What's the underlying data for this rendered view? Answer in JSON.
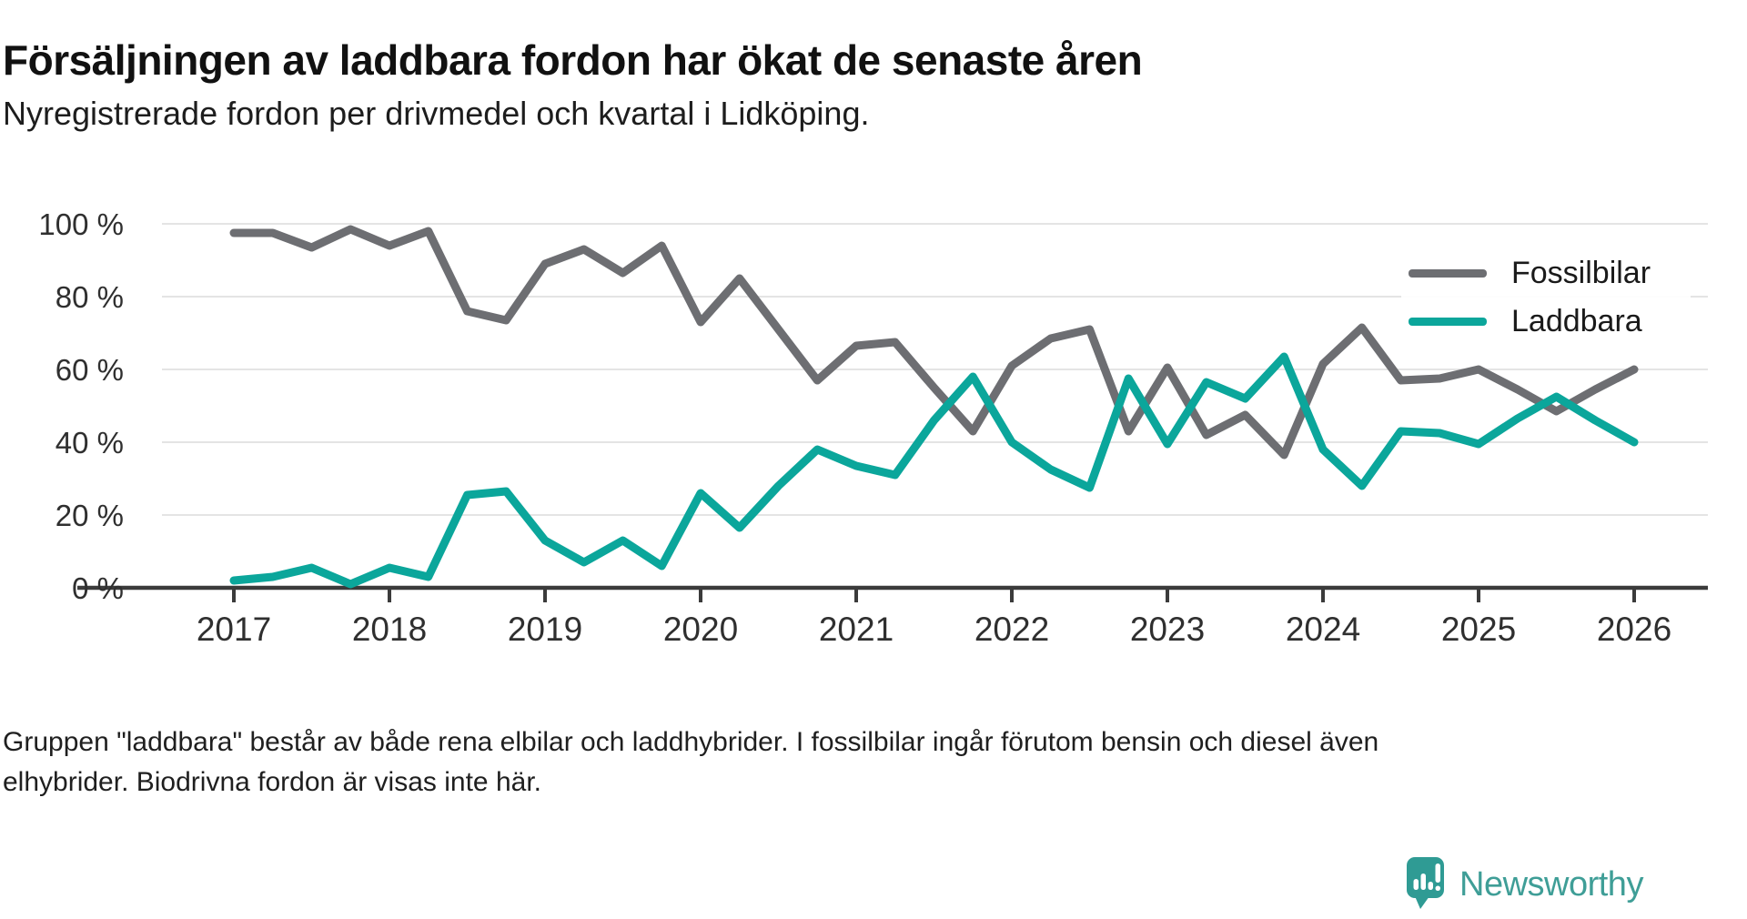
{
  "header": {
    "title": "Försäljningen av laddbara fordon har ökat de senaste åren",
    "subtitle": "Nyregistrerade fordon per drivmedel och kvartal i Lidköping."
  },
  "legend": [
    {
      "label": "Fossilbilar",
      "color": "#6d6e72"
    },
    {
      "label": "Laddbara",
      "color": "#0ba69b"
    }
  ],
  "chart_data": {
    "type": "line",
    "title": "Försäljningen av laddbara fordon har ökat de senaste åren",
    "subtitle": "Nyregistrerade fordon per drivmedel och kvartal i Lidköping.",
    "x": [
      "2017 Q1",
      "2017 Q2",
      "2017 Q3",
      "2017 Q4",
      "2018 Q1",
      "2018 Q2",
      "2018 Q3",
      "2018 Q4",
      "2019 Q1",
      "2019 Q2",
      "2019 Q3",
      "2019 Q4",
      "2020 Q1",
      "2020 Q2",
      "2020 Q3",
      "2020 Q4",
      "2021 Q1",
      "2021 Q2",
      "2021 Q3",
      "2021 Q4",
      "2022 Q1",
      "2022 Q2",
      "2022 Q3",
      "2022 Q4",
      "2023 Q1",
      "2023 Q2",
      "2023 Q3",
      "2023 Q4",
      "2024 Q1",
      "2024 Q2",
      "2024 Q3",
      "2024 Q4",
      "2025 Q1",
      "2025 Q2",
      "2025 Q3",
      "2025 Q4",
      "2026 Q1"
    ],
    "x_tick_labels": [
      "2017",
      "2018",
      "2019",
      "2020",
      "2021",
      "2022",
      "2023",
      "2024",
      "2025",
      "2026"
    ],
    "series": [
      {
        "name": "Fossilbilar",
        "color": "#6d6e72",
        "values": [
          97.5,
          97.5,
          93.5,
          98.5,
          94,
          98,
          76,
          73.5,
          89,
          93,
          86.5,
          94,
          73,
          85,
          71,
          57,
          66.5,
          67.5,
          55,
          43,
          61,
          68.5,
          71,
          43,
          60.5,
          42,
          47.5,
          36.5,
          61.5,
          71.5,
          57,
          57.5,
          60,
          54.5,
          48.5,
          54.5,
          60
        ]
      },
      {
        "name": "Laddbara",
        "color": "#0ba69b",
        "values": [
          2,
          3,
          5.5,
          1,
          5.5,
          3,
          25.5,
          26.5,
          13,
          7,
          13,
          6,
          26,
          16.5,
          28,
          38,
          33.5,
          31,
          46,
          58,
          40,
          32.5,
          27.5,
          57.5,
          39.5,
          56.5,
          52,
          63.5,
          38,
          28,
          43,
          42.5,
          39.5,
          46.5,
          52.5,
          46,
          40
        ]
      }
    ],
    "ylim": [
      0,
      100
    ],
    "yticks": [
      0,
      20,
      40,
      60,
      80,
      100
    ],
    "ytick_suffix": " %",
    "grid": true,
    "legend_position": "top-right"
  },
  "footnote": {
    "line1": "Gruppen \"laddbara\" består av både rena elbilar och laddhybrider. I fossilbilar ingår förutom bensin och diesel även",
    "line2": "elhybrider. Biodrivna fordon är visas inte här."
  },
  "brand": {
    "name": "Newsworthy"
  }
}
